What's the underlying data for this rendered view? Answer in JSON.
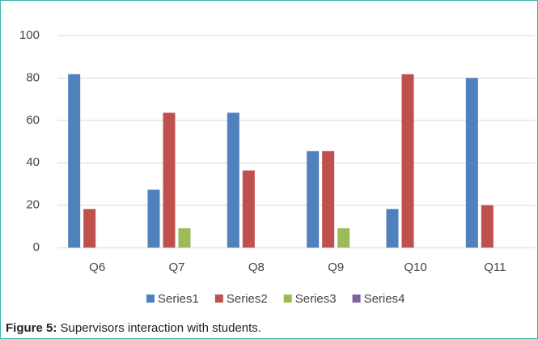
{
  "chart_data": {
    "type": "bar",
    "categories": [
      "Q6",
      "Q7",
      "Q8",
      "Q9",
      "Q10",
      "Q11"
    ],
    "series": [
      {
        "name": "Series1",
        "color": "#4f81bd",
        "values": [
          81.8,
          27.3,
          63.6,
          45.5,
          18.2,
          80
        ]
      },
      {
        "name": "Series2",
        "color": "#c0504d",
        "values": [
          18.2,
          63.6,
          36.4,
          45.5,
          81.8,
          20
        ]
      },
      {
        "name": "Series3",
        "color": "#9bbb59",
        "values": [
          0,
          9.1,
          0,
          9.1,
          0,
          0
        ]
      },
      {
        "name": "Series4",
        "color": "#8064a2",
        "values": [
          0,
          0,
          0,
          0,
          0,
          0
        ]
      }
    ],
    "ylim": [
      0,
      100
    ],
    "yticks": [
      0,
      20,
      40,
      60,
      80,
      100
    ],
    "grid": true,
    "legend": "bottom"
  },
  "caption": {
    "label": "Figure 5:",
    "text": "Supervisors interaction with students."
  }
}
